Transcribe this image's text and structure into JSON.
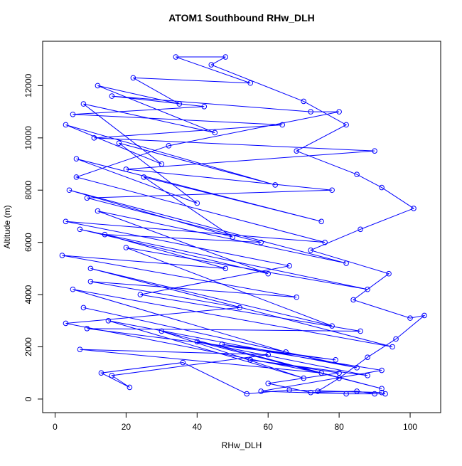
{
  "chart_data": {
    "type": "line",
    "title": "ATOM1 Southbound RHw_DLH",
    "x_label": "RHw_DLH",
    "y_label": "Altitude (m)",
    "xlim": [
      -3.5,
      108.6
    ],
    "ylim": [
      -520,
      13700
    ],
    "xticks": [
      0,
      20,
      40,
      60,
      80,
      100
    ],
    "yticks": [
      0,
      2000,
      4000,
      6000,
      8000,
      10000,
      12000
    ],
    "markers": true,
    "series": [
      {
        "color": "#0000ff",
        "x": [
          90,
          85,
          72,
          60,
          80,
          55,
          88,
          40,
          92,
          30,
          70,
          15,
          85,
          8,
          65,
          5,
          95,
          10,
          78,
          20,
          88,
          7,
          60,
          12,
          82,
          4,
          50,
          25,
          75,
          6,
          40,
          18,
          62,
          3,
          30,
          8,
          45,
          12,
          35,
          22,
          55,
          34,
          48,
          44,
          70,
          82,
          68,
          85,
          92,
          101,
          86,
          72,
          94,
          84,
          100,
          104,
          96,
          88,
          80,
          74,
          92,
          66,
          54,
          36,
          13,
          21,
          16,
          60,
          7,
          75,
          3,
          52,
          10,
          68,
          2,
          48,
          14,
          58,
          9,
          78,
          20,
          90,
          11,
          64,
          5,
          42,
          16,
          72,
          80,
          32,
          6,
          76,
          3,
          66,
          24,
          86,
          9,
          79,
          47,
          92,
          58,
          82,
          93
        ],
        "values": [
          200,
          300,
          250,
          600,
          1000,
          1500,
          900,
          2200,
          400,
          2600,
          800,
          3000,
          1200,
          3500,
          1800,
          4200,
          2000,
          5000,
          2800,
          5800,
          4200,
          6500,
          4800,
          7200,
          5200,
          8000,
          6200,
          8500,
          6800,
          9200,
          7500,
          9800,
          8200,
          10500,
          9000,
          11300,
          10200,
          12000,
          11300,
          12300,
          12100,
          13100,
          13100,
          12800,
          11400,
          10500,
          9500,
          8600,
          8100,
          7300,
          6500,
          5700,
          4800,
          3800,
          3100,
          3200,
          2300,
          1600,
          800,
          300,
          250,
          350,
          200,
          1400,
          1000,
          450,
          900,
          1700,
          1900,
          1000,
          2900,
          3500,
          4500,
          3900,
          5500,
          5000,
          6300,
          6000,
          7700,
          8000,
          8800,
          9500,
          10000,
          10500,
          10900,
          11200,
          11600,
          11000,
          11000,
          9700,
          8500,
          6000,
          6800,
          5100,
          4000,
          2600,
          2700,
          1500,
          2100,
          1100,
          300,
          200,
          200
        ]
      }
    ]
  }
}
